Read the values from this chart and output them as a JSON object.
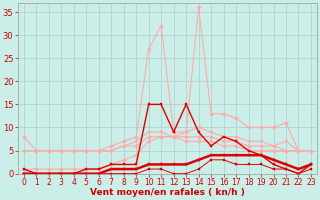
{
  "background_color": "#cceee8",
  "grid_color": "#aacccc",
  "xlabel": "Vent moyen/en rafales ( kn/h )",
  "xlabel_color": "#cc0000",
  "tick_color": "#cc0000",
  "x_ticks": [
    0,
    1,
    2,
    3,
    4,
    5,
    6,
    7,
    8,
    9,
    10,
    11,
    12,
    13,
    14,
    15,
    16,
    17,
    18,
    19,
    20,
    21,
    22,
    23
  ],
  "ylim": [
    0,
    37
  ],
  "yticks": [
    0,
    5,
    10,
    15,
    20,
    25,
    30,
    35
  ],
  "series": [
    {
      "label": "rafales_max",
      "color": "#ffaaaa",
      "lw": 0.8,
      "marker": "D",
      "markersize": 2,
      "data": [
        8,
        5,
        5,
        5,
        5,
        5,
        5,
        6,
        7,
        8,
        27,
        32,
        9,
        9,
        36,
        13,
        13,
        12,
        10,
        10,
        10,
        11,
        5,
        5
      ]
    },
    {
      "label": "rafales_q3",
      "color": "#ffaaaa",
      "lw": 0.8,
      "marker": "v",
      "markersize": 2,
      "data": [
        5,
        5,
        5,
        5,
        5,
        5,
        5,
        5,
        6,
        7,
        9,
        9,
        8,
        9,
        10,
        9,
        8,
        8,
        7,
        7,
        6,
        7,
        5,
        5
      ]
    },
    {
      "label": "rafales_median",
      "color": "#ffaaaa",
      "lw": 0.8,
      "marker": "D",
      "markersize": 2,
      "data": [
        5,
        5,
        5,
        5,
        5,
        5,
        5,
        5,
        6,
        6,
        8,
        8,
        8,
        8,
        8,
        8,
        7,
        7,
        6,
        6,
        6,
        5,
        5,
        5
      ]
    },
    {
      "label": "rafales_q1",
      "color": "#ffaaaa",
      "lw": 0.8,
      "marker": "D",
      "markersize": 2,
      "data": [
        1,
        1,
        1,
        1,
        1,
        1,
        1,
        2,
        3,
        4,
        7,
        8,
        8,
        7,
        7,
        7,
        6,
        6,
        5,
        5,
        5,
        5,
        5,
        5
      ]
    },
    {
      "label": "vent_max",
      "color": "#dd0000",
      "lw": 1.0,
      "marker": "s",
      "markersize": 2,
      "data": [
        1,
        0,
        0,
        0,
        0,
        1,
        1,
        2,
        2,
        2,
        15,
        15,
        9,
        15,
        9,
        6,
        8,
        7,
        5,
        4,
        2,
        1,
        0,
        2
      ]
    },
    {
      "label": "vent_median",
      "color": "#dd0000",
      "lw": 1.8,
      "marker": "s",
      "markersize": 2,
      "data": [
        0,
        0,
        0,
        0,
        0,
        0,
        0,
        1,
        1,
        1,
        2,
        2,
        2,
        2,
        3,
        4,
        4,
        4,
        4,
        4,
        3,
        2,
        1,
        2
      ]
    },
    {
      "label": "vent_min",
      "color": "#dd0000",
      "lw": 0.7,
      "marker": "s",
      "markersize": 1.5,
      "data": [
        0,
        0,
        0,
        0,
        0,
        0,
        0,
        0,
        0,
        0,
        1,
        1,
        0,
        0,
        1,
        3,
        3,
        2,
        2,
        2,
        1,
        1,
        0,
        1
      ]
    }
  ]
}
